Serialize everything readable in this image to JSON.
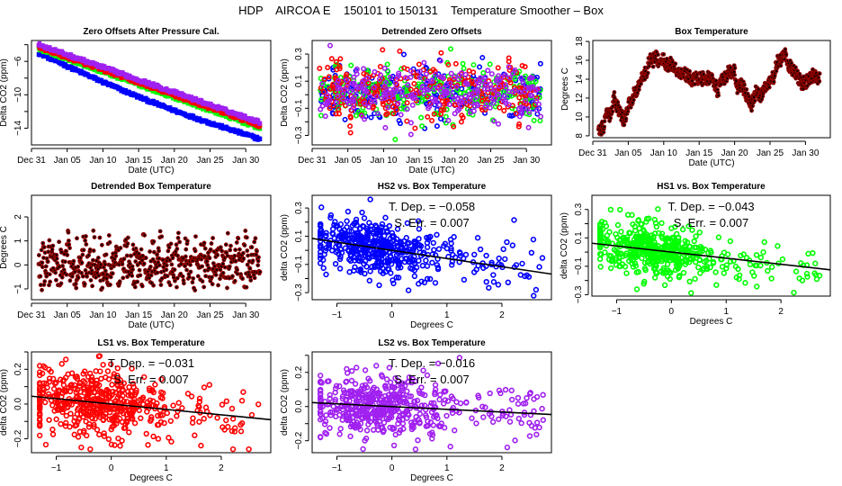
{
  "figure": {
    "title": "HDP    AIRCOA E    150101 to 150131    Temperature Smoother – Box"
  },
  "chart_data": [
    {
      "id": "zero-offsets",
      "type": "scatter",
      "title": "Zero Offsets After Pressure Cal.",
      "xlabel": "Date (UTC)",
      "ylabel": "Delta CO2 (ppm)",
      "x_tick_labels": [
        "Dec 31",
        "Jan 05",
        "Jan 10",
        "Jan 15",
        "Jan 20",
        "Jan 25",
        "Jan 30"
      ],
      "x_tick_days": [
        0,
        5,
        10,
        15,
        20,
        25,
        30
      ],
      "xlim_days": [
        0,
        33.5
      ],
      "ylim": [
        -16,
        -3.5
      ],
      "y_ticks": [
        -6,
        -10,
        -14
      ],
      "y_minor_ticks": [
        -4,
        -8,
        -12
      ],
      "series": [
        {
          "name": "HS2",
          "color": "#0000ff",
          "start": -5.0,
          "end": -15.3,
          "pattern": "blue"
        },
        {
          "name": "HS1",
          "color": "#00ff00",
          "start": -4.5,
          "end": -14.0
        },
        {
          "name": "LS1",
          "color": "#ff0000",
          "start": -4.3,
          "end": -13.7
        },
        {
          "name": "LS2",
          "color": "#a020f0",
          "start": -4.0,
          "end": -13.3
        }
      ],
      "x_start_day": 1.0,
      "x_end_day": 32.0
    },
    {
      "id": "detrended-zero-offsets",
      "type": "scatter",
      "title": "Detrended Zero Offsets",
      "xlabel": "Date (UTC)",
      "ylabel": "Delta CO2 (ppm)",
      "x_tick_labels": [
        "Dec 31",
        "Jan 05",
        "Jan 10",
        "Jan 15",
        "Jan 20",
        "Jan 25",
        "Jan 30"
      ],
      "x_tick_days": [
        0,
        5,
        10,
        15,
        20,
        25,
        30
      ],
      "xlim_days": [
        0,
        33.5
      ],
      "ylim": [
        -0.37,
        0.4
      ],
      "y_ticks": [
        0.3,
        0.1,
        -0.1,
        -0.3
      ],
      "y_minor_ticks": [
        0.2,
        0.0,
        -0.2
      ],
      "series": [
        {
          "name": "HS2",
          "color": "#0000ff"
        },
        {
          "name": "HS1",
          "color": "#00ff00"
        },
        {
          "name": "LS1",
          "color": "#ff0000"
        },
        {
          "name": "LS2",
          "color": "#a020f0"
        }
      ],
      "range": [
        -0.33,
        0.38
      ]
    },
    {
      "id": "box-temperature",
      "type": "scatter",
      "title": "Box Temperature",
      "xlabel": "Date (UTC)",
      "ylabel": "Degrees C",
      "x_tick_labels": [
        "Dec 31",
        "Jan 05",
        "Jan 10",
        "Jan 15",
        "Jan 20",
        "Jan 25",
        "Jan 30"
      ],
      "x_tick_days": [
        0,
        5,
        10,
        15,
        20,
        25,
        30
      ],
      "xlim_days": [
        0,
        33.5
      ],
      "ylim": [
        7.8,
        18.1
      ],
      "y_ticks": [
        8,
        10,
        12,
        14,
        16,
        18
      ],
      "color": "#8b0000",
      "daily_mean": [
        [
          0.8,
          8.6
        ],
        [
          1.5,
          8.9
        ],
        [
          2.0,
          10.2
        ],
        [
          2.6,
          10.3
        ],
        [
          3.0,
          12.2
        ],
        [
          3.5,
          11.0
        ],
        [
          4.0,
          10.2
        ],
        [
          4.4,
          9.6
        ],
        [
          5.0,
          11.2
        ],
        [
          5.6,
          12.0
        ],
        [
          6.0,
          12.8
        ],
        [
          6.6,
          13.3
        ],
        [
          7.0,
          14.4
        ],
        [
          7.6,
          14.6
        ],
        [
          8.0,
          16.2
        ],
        [
          8.5,
          16.0
        ],
        [
          9.0,
          16.4
        ],
        [
          9.5,
          15.5
        ],
        [
          10.0,
          16.1
        ],
        [
          10.5,
          15.4
        ],
        [
          11.0,
          15.6
        ],
        [
          12.0,
          14.8
        ],
        [
          13.0,
          14.5
        ],
        [
          14.0,
          14.0
        ],
        [
          15.0,
          14.0
        ],
        [
          16.0,
          14.1
        ],
        [
          17.0,
          14.0
        ],
        [
          17.6,
          12.6
        ],
        [
          18.0,
          13.5
        ],
        [
          19.0,
          14.6
        ],
        [
          20.0,
          14.8
        ],
        [
          20.4,
          13.0
        ],
        [
          21.0,
          13.6
        ],
        [
          21.6,
          12.4
        ],
        [
          22.3,
          11.0
        ],
        [
          23.0,
          12.6
        ],
        [
          23.6,
          12.2
        ],
        [
          24.2,
          13.0
        ],
        [
          25.0,
          13.6
        ],
        [
          25.6,
          14.4
        ],
        [
          26.0,
          15.8
        ],
        [
          26.6,
          16.0
        ],
        [
          27.0,
          16.8
        ],
        [
          27.6,
          15.4
        ],
        [
          28.0,
          15.2
        ],
        [
          28.6,
          14.8
        ],
        [
          29.4,
          13.6
        ],
        [
          30.0,
          13.6
        ],
        [
          30.6,
          14.0
        ],
        [
          31.0,
          14.4
        ],
        [
          31.6,
          14.2
        ],
        [
          32.0,
          14.2
        ]
      ]
    },
    {
      "id": "detrended-box-temperature",
      "type": "scatter",
      "title": "Detrended Box Temperature",
      "xlabel": "Date (UTC)",
      "ylabel": "Degrees C",
      "x_tick_labels": [
        "Dec 31",
        "Jan 05",
        "Jan 10",
        "Jan 15",
        "Jan 20",
        "Jan 25",
        "Jan 30"
      ],
      "x_tick_days": [
        0,
        5,
        10,
        15,
        20,
        25,
        30
      ],
      "xlim_days": [
        0,
        33.5
      ],
      "ylim": [
        -1.45,
        2.9
      ],
      "y_ticks": [
        -1,
        0,
        1,
        2
      ],
      "color": "#8b0000",
      "range": [
        -1.35,
        2.8
      ]
    },
    {
      "id": "hs2-vs-box",
      "type": "scatter",
      "title": "HS2 vs. Box Temperature",
      "xlabel": "Degrees C",
      "ylabel": "delta CO2 (ppm)",
      "color": "#0000ff",
      "xlim": [
        -1.45,
        2.9
      ],
      "ylim": [
        -0.35,
        0.39
      ],
      "x_ticks": [
        -1,
        0,
        1,
        2
      ],
      "y_ticks": [
        0.3,
        0.1,
        -0.1,
        -0.3
      ],
      "y_minor_ticks": [
        0.2,
        0.0,
        -0.2
      ],
      "fit": {
        "slope": -0.058,
        "intercept": 0.0
      },
      "annotation": {
        "t_dep_label": "T. Dep. =",
        "t_dep_value": "−0.058",
        "s_err_label": "S. Err. =",
        "s_err_value": "0.007"
      }
    },
    {
      "id": "hs1-vs-box",
      "type": "scatter",
      "title": "HS1 vs. Box Temperature",
      "xlabel": "Degrees C",
      "ylabel": "delta CO2 (ppm)",
      "color": "#00ff00",
      "xlim": [
        -1.45,
        2.9
      ],
      "ylim": [
        -0.31,
        0.4
      ],
      "x_ticks": [
        -1,
        0,
        1,
        2
      ],
      "y_ticks": [
        0.3,
        0.1,
        -0.1,
        -0.3
      ],
      "y_minor_ticks": [
        0.2,
        0.0,
        -0.2
      ],
      "fit": {
        "slope": -0.043,
        "intercept": 0.0
      },
      "annotation": {
        "t_dep_label": "T. Dep. =",
        "t_dep_value": "−0.043",
        "s_err_label": "S. Err. =",
        "s_err_value": "0.007"
      }
    },
    {
      "id": "ls1-vs-box",
      "type": "scatter",
      "title": "LS1 vs. Box Temperature",
      "xlabel": "Degrees C",
      "ylabel": "delta CO2 (ppm)",
      "color": "#ff0000",
      "xlim": [
        -1.45,
        2.9
      ],
      "ylim": [
        -0.28,
        0.3
      ],
      "x_ticks": [
        -1,
        0,
        1,
        2
      ],
      "y_ticks": [
        0.2,
        0.0,
        -0.2
      ],
      "y_minor_ticks": [
        0.3,
        0.1,
        -0.1
      ],
      "fit": {
        "slope": -0.031,
        "intercept": 0.0
      },
      "annotation": {
        "t_dep_label": "T. Dep. =",
        "t_dep_value": "−0.031",
        "s_err_label": "S. Err. =",
        "s_err_value": "0.007"
      }
    },
    {
      "id": "ls2-vs-box",
      "type": "scatter",
      "title": "LS2 vs. Box Temperature",
      "xlabel": "Degrees C",
      "ylabel": "delta CO2 (ppm)",
      "color": "#a020f0",
      "xlim": [
        -1.45,
        2.9
      ],
      "ylim": [
        -0.27,
        0.32
      ],
      "x_ticks": [
        -1,
        0,
        1,
        2
      ],
      "y_ticks": [
        0.2,
        0.0,
        -0.2
      ],
      "y_minor_ticks": [
        0.3,
        0.1,
        -0.1
      ],
      "fit": {
        "slope": -0.016,
        "intercept": 0.0
      },
      "annotation": {
        "t_dep_label": "T. Dep. =",
        "t_dep_value": "−0.016",
        "s_err_label": "S. Err. =",
        "s_err_value": "0.007"
      }
    }
  ]
}
